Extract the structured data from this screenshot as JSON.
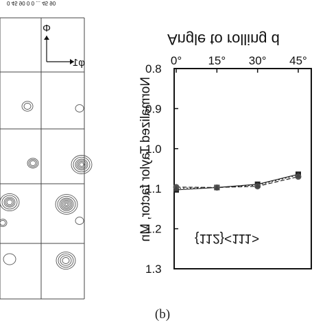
{
  "panel_label": "(b)",
  "odf_header": "0 45 90 0 0 ... 45 90",
  "odf_axis": {
    "vertical": "Φ",
    "horizontal": "φ1"
  },
  "chart_data": {
    "type": "line",
    "title": "Angle to rolling d",
    "xlabel": "Angle to rolling d",
    "ylabel": "Normalized Taylor factor, Mn",
    "annotation": "{112}<111>",
    "x_ticks": [
      "0°",
      "15°",
      "30°",
      "45°"
    ],
    "x": [
      0,
      15,
      30,
      45
    ],
    "xlim": [
      0,
      45
    ],
    "ylim": [
      0.8,
      1.3
    ],
    "y_ticks": [
      "0.8",
      "0.9",
      "1.0",
      "1.1",
      "1.2",
      "1.3"
    ],
    "grid": false,
    "series": [
      {
        "style": "solid-square",
        "values": [
          1.103,
          1.097,
          1.089,
          1.064
        ]
      },
      {
        "style": "dash-circle",
        "values": [
          1.096,
          1.097,
          1.094,
          1.07
        ]
      },
      {
        "style": "dot-triangle",
        "values": [
          1.099,
          1.097,
          1.091,
          1.066
        ]
      }
    ],
    "colors": {
      "ink": "#111111",
      "marker_dark": "#222222",
      "marker_gray": "#555555"
    }
  }
}
